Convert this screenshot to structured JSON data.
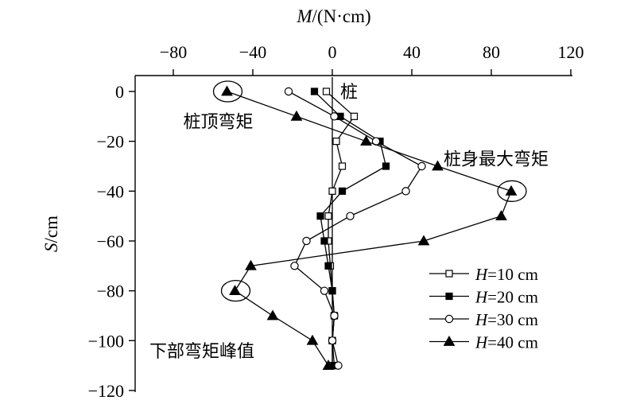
{
  "chart_data": {
    "type": "line",
    "orientation": "profile",
    "xlabel": "M/(N·cm)",
    "ylabel": "S/cm",
    "xlim": [
      -120,
      120
    ],
    "ylim": [
      -120,
      10
    ],
    "xticks": [
      -80,
      -40,
      0,
      40,
      80,
      120
    ],
    "yticks": [
      0,
      -20,
      -40,
      -60,
      -80,
      -100,
      -120
    ],
    "grid": false,
    "legend_position": "bottom-right",
    "series": [
      {
        "name": "H=10 cm",
        "marker": "open-square",
        "color": "#000000",
        "points": [
          [
            -3,
            0
          ],
          [
            11,
            -10
          ],
          [
            2,
            -20
          ],
          [
            5,
            -30
          ],
          [
            0,
            -40
          ],
          [
            -2,
            -50
          ],
          [
            -2,
            -60
          ],
          [
            -1,
            -70
          ],
          [
            0,
            -80
          ],
          [
            1,
            -90
          ],
          [
            0,
            -100
          ],
          [
            0,
            -110
          ]
        ]
      },
      {
        "name": "H=20 cm",
        "marker": "filled-square",
        "color": "#000000",
        "points": [
          [
            -9,
            0
          ],
          [
            4,
            -10
          ],
          [
            24,
            -20
          ],
          [
            27,
            -30
          ],
          [
            5,
            -40
          ],
          [
            -6,
            -50
          ],
          [
            -4,
            -60
          ],
          [
            -2,
            -70
          ],
          [
            0,
            -80
          ],
          [
            1,
            -90
          ],
          [
            0,
            -100
          ],
          [
            1,
            -110
          ]
        ]
      },
      {
        "name": "H=30 cm",
        "marker": "open-circle",
        "color": "#000000",
        "points": [
          [
            -22,
            0
          ],
          [
            1,
            -10
          ],
          [
            22,
            -20
          ],
          [
            45,
            -30
          ],
          [
            37,
            -40
          ],
          [
            9,
            -50
          ],
          [
            -13,
            -60
          ],
          [
            -19,
            -70
          ],
          [
            -4,
            -80
          ],
          [
            1,
            -90
          ],
          [
            0,
            -100
          ],
          [
            3,
            -110
          ]
        ]
      },
      {
        "name": "H=40 cm",
        "marker": "filled-triangle",
        "color": "#000000",
        "points": [
          [
            -53,
            0
          ],
          [
            -18,
            -10
          ],
          [
            17,
            -20
          ],
          [
            53,
            -30
          ],
          [
            90,
            -40
          ],
          [
            85,
            -50
          ],
          [
            46,
            -60
          ],
          [
            -41,
            -70
          ],
          [
            -49,
            -80
          ],
          [
            -30,
            -90
          ],
          [
            -10,
            -100
          ],
          [
            -2,
            -110
          ]
        ]
      }
    ],
    "annotations": [
      {
        "text": "桩",
        "x": 4,
        "y": 0
      },
      {
        "text": "桩顶弯矩",
        "x": -75,
        "y": -12
      },
      {
        "text": "桩身最大弯矩",
        "x": 56,
        "y": -27
      },
      {
        "text": "下部弯矩峰值",
        "x": -92,
        "y": -104
      }
    ],
    "highlight_circles": [
      {
        "x": -53,
        "y": 0
      },
      {
        "x": 90,
        "y": -40
      },
      {
        "x": -49,
        "y": -80
      }
    ]
  }
}
